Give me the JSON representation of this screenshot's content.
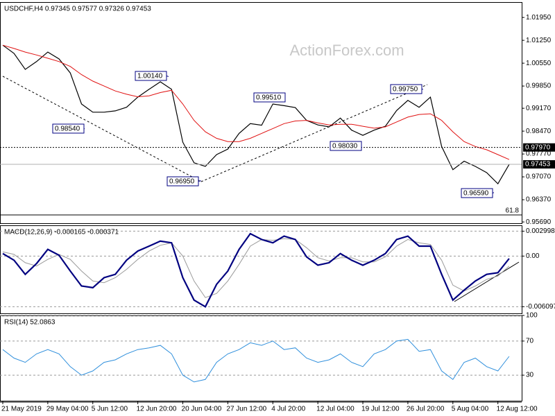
{
  "chart_data": [
    {
      "type": "line",
      "title": "USDCHF,H4  0.97345 0.97577 0.97326 0.97453",
      "watermark": "ActionForex.com",
      "categories": [
        "21 May 2019",
        null,
        null,
        null,
        "29 May 04:00",
        null,
        null,
        null,
        "5 Jun 12:00",
        null,
        null,
        null,
        "12 Jun 20:00",
        null,
        null,
        null,
        "20 Jun 04:00",
        null,
        null,
        null,
        "27 Jun 12:00",
        null,
        null,
        null,
        "4 Jul 20:00",
        null,
        null,
        null,
        "12 Jul 04:00",
        null,
        null,
        null,
        "19 Jul 12:00",
        null,
        null,
        null,
        "26 Jul 20:00",
        null,
        null,
        null,
        "5 Aug 04:00",
        null,
        null,
        null,
        "12 Aug 12:00",
        null
      ],
      "ylim": [
        0.9565,
        1.0242
      ],
      "yticks": [
        {
          "value": 1.0195,
          "label": "1.01950"
        },
        {
          "value": 1.0125,
          "label": "1.01250"
        },
        {
          "value": 1.0055,
          "label": "1.00550"
        },
        {
          "value": 0.9985,
          "label": "0.99850"
        },
        {
          "value": 0.9917,
          "label": "0.99170"
        },
        {
          "value": 0.9847,
          "label": "0.98470"
        },
        {
          "value": 0.9777,
          "label": "0.97770"
        },
        {
          "value": 0.9707,
          "label": "0.97070"
        },
        {
          "value": 0.9637,
          "label": "0.96370"
        },
        {
          "value": 0.9569,
          "label": "0.95690"
        }
      ],
      "grid": false,
      "level": {
        "value": 0.9797,
        "label": "0.97970"
      },
      "last_price": {
        "value": 0.97453,
        "label": "0.97453"
      },
      "fib_label": "61.8",
      "annotations": [
        {
          "value": 1.0014,
          "label": "1.00140"
        },
        {
          "value": 0.9854,
          "label": "0.98540"
        },
        {
          "value": 0.9695,
          "label": "0.96950"
        },
        {
          "value": 0.9951,
          "label": "0.99510"
        },
        {
          "value": 0.9803,
          "label": "0.98030"
        },
        {
          "value": 0.9975,
          "label": "0.99750"
        },
        {
          "value": 0.9659,
          "label": "0.96590"
        }
      ],
      "series": [
        {
          "color": "#000000",
          "values": [
            1.011,
            1.0085,
            1.0036,
            1.006,
            1.0089,
            1.0068,
            1.0025,
            0.993,
            0.9905,
            0.9905,
            0.9909,
            0.992,
            0.9951,
            0.9975,
            0.9998,
            0.9975,
            0.9813,
            0.975,
            0.9739,
            0.9775,
            0.9792,
            0.984,
            0.987,
            0.9865,
            0.993,
            0.9925,
            0.9919,
            0.988,
            0.9866,
            0.986,
            0.9887,
            0.985,
            0.9834,
            0.985,
            0.9862,
            0.991,
            0.9941,
            0.992,
            0.9951,
            0.98,
            0.9729,
            0.9755,
            0.9739,
            0.972,
            0.9686,
            0.9745
          ]
        },
        {
          "color": "#e01010",
          "values": [
            1.011,
            1.01,
            1.0089,
            1.008,
            1.007,
            1.006,
            1.0045,
            1.002,
            1.0,
            0.9985,
            0.997,
            0.996,
            0.9952,
            0.9955,
            0.9965,
            0.9972,
            0.993,
            0.988,
            0.9845,
            0.9825,
            0.9815,
            0.9815,
            0.9825,
            0.984,
            0.9855,
            0.987,
            0.9878,
            0.988,
            0.9872,
            0.9866,
            0.9868,
            0.9868,
            0.9862,
            0.9856,
            0.986,
            0.9875,
            0.989,
            0.9898,
            0.99,
            0.988,
            0.9845,
            0.9815,
            0.98,
            0.979,
            0.9775,
            0.976
          ]
        }
      ]
    },
    {
      "type": "line",
      "title": "MACD(12,26,9) -0.000165 -0.000371",
      "ylim": [
        -0.0069,
        0.0037
      ],
      "yticks": [
        0.002998,
        {
          "value": 0,
          "label": "0.00"
        },
        -0.006097
      ],
      "grid": true,
      "series": [
        {
          "color": "#9a9a9a",
          "values": [
            0.0005,
            0.0002,
            -0.0008,
            -0.0012,
            -0.0004,
            0.0002,
            -0.0004,
            -0.0018,
            -0.003,
            -0.0032,
            -0.0026,
            -0.0016,
            -0.0004,
            0.0006,
            0.0013,
            0.0016,
            0.0,
            -0.003,
            -0.005,
            -0.0045,
            -0.003,
            -0.001,
            0.0012,
            0.002,
            0.0019,
            0.0021,
            0.002,
            0.001,
            -0.0002,
            -0.0006,
            -0.0002,
            -0.0002,
            -0.0007,
            -0.0007,
            -0.0001,
            0.0012,
            0.002,
            0.0016,
            0.0014,
            -0.0005,
            -0.0035,
            -0.0042,
            -0.0036,
            -0.0028,
            -0.0024,
            -0.0012
          ]
        },
        {
          "color": "#000080",
          "values": [
            0.0003,
            -0.0005,
            -0.0022,
            -0.0009,
            0.0008,
            0.0001,
            -0.0018,
            -0.0036,
            -0.0038,
            -0.0026,
            -0.0022,
            -0.0005,
            0.0006,
            0.0012,
            0.0018,
            0.0016,
            -0.0026,
            -0.0053,
            -0.0061,
            -0.0034,
            -0.0018,
            0.0008,
            0.0027,
            0.002,
            0.0016,
            0.0024,
            0.002,
            -0.0001,
            -0.0011,
            -0.0008,
            0.0003,
            -0.0005,
            -0.0011,
            -0.0005,
            0.0003,
            0.002,
            0.0024,
            0.0012,
            0.0012,
            -0.0022,
            -0.0053,
            -0.0041,
            -0.003,
            -0.0022,
            -0.002,
            -0.0003
          ]
        }
      ]
    },
    {
      "type": "line",
      "title": "RSI(14) 52.0863",
      "ylim": [
        0,
        100
      ],
      "yticks": [
        100,
        70,
        30
      ],
      "grid": true,
      "series": [
        {
          "color": "#2f8fdc",
          "values": [
            60,
            50,
            45,
            55,
            60,
            55,
            40,
            30,
            35,
            45,
            48,
            55,
            60,
            62,
            65,
            55,
            30,
            22,
            25,
            45,
            55,
            60,
            68,
            65,
            70,
            60,
            62,
            50,
            45,
            48,
            55,
            45,
            40,
            55,
            60,
            70,
            72,
            58,
            60,
            35,
            25,
            45,
            50,
            40,
            35,
            52
          ]
        }
      ]
    }
  ]
}
